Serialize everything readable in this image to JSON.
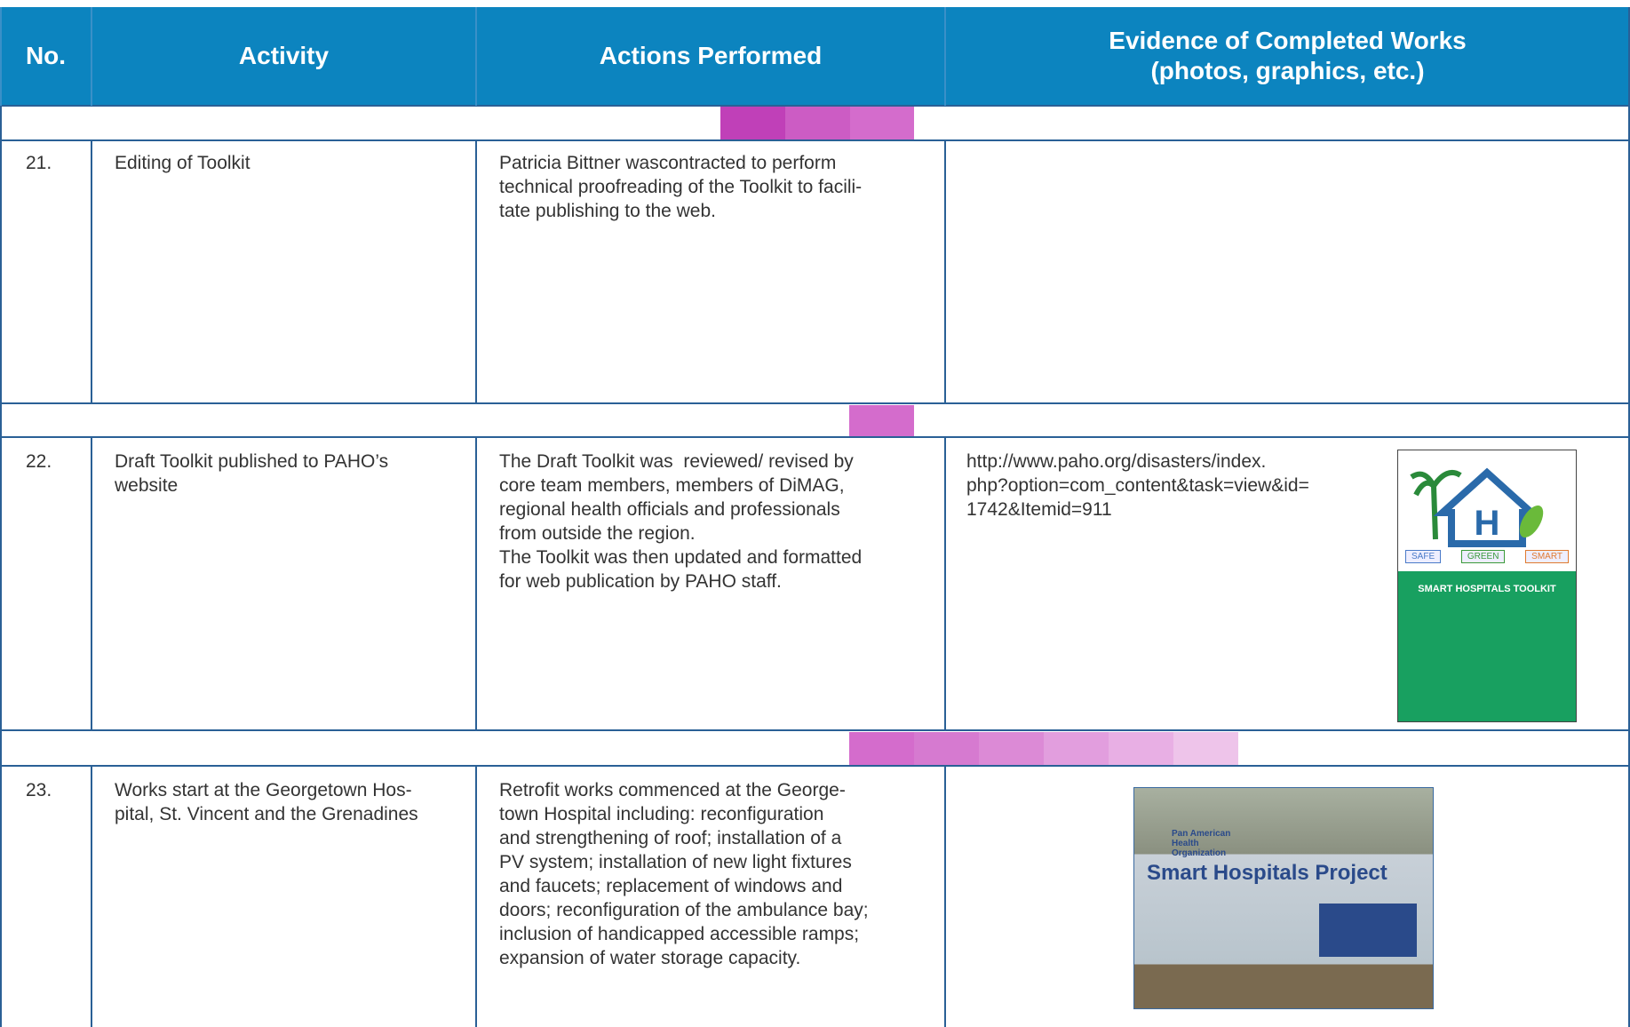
{
  "header": {
    "columns": [
      [
        "No."
      ],
      [
        "Activity"
      ],
      [
        "Actions Performed"
      ],
      [
        "Evidence of Completed Works",
        "(photos, graphics, etc.)"
      ]
    ]
  },
  "rows": [
    {
      "no": "21.",
      "activity": [
        "Editing of Toolkit"
      ],
      "actions": [
        "Patricia Bittner wascontracted to perform",
        "technical proofreading of the Toolkit to facili-",
        "tate publishing to the web."
      ]
    },
    {
      "no": "22.",
      "activity": [
        "Draft Toolkit published to PAHO’s",
        "website"
      ],
      "actions": [
        "The Draft Toolkit was  reviewed/ revised by",
        "core team members, members of DiMAG,",
        "regional health officials and professionals",
        "from outside the region.",
        "The Toolkit was then updated and formatted",
        "for web publication by PAHO staff."
      ],
      "evidence": [
        "http://www.paho.org/disasters/index.",
        "php?option=com_content&task=view&id=",
        "1742&Itemid=911"
      ],
      "image": {
        "tags": [
          "SAFE",
          "GREEN",
          "SMART"
        ],
        "title": "SMART HOSPITALS TOOLKIT"
      }
    },
    {
      "no": "23.",
      "activity": [
        "Works start at the Georgetown Hos-",
        "pital, St. Vincent and the Grenadines"
      ],
      "actions": [
        "Retrofit works commenced at the George-",
        "town Hospital including: reconfiguration",
        "and strengthening of roof; installation of a",
        "PV system; installation of new light fixtures",
        "and faucets; replacement of windows and",
        "doors; reconfiguration of the ambulance bay;",
        "inclusion of handicapped accessible ramps;",
        "expansion of water storage capacity."
      ],
      "image": {
        "org": [
          "Pan American",
          "Health",
          "Organization"
        ],
        "title": "Smart Hospitals Project"
      }
    }
  ]
}
